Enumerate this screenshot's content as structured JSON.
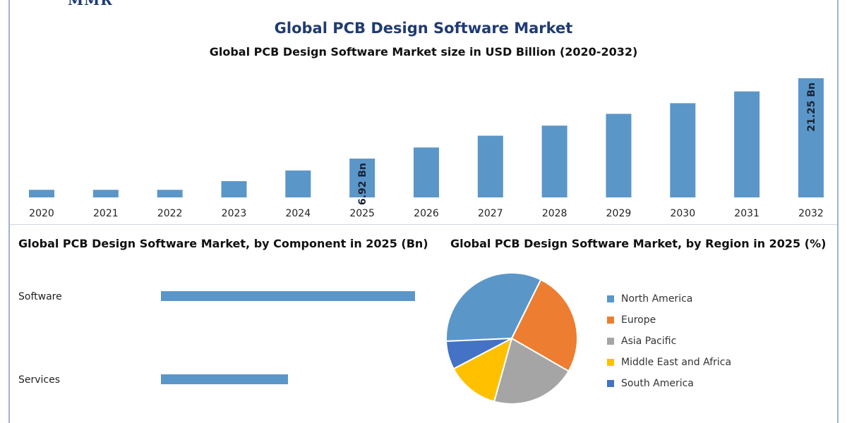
{
  "header": {
    "logo_text": "MMR",
    "title": "Global PCB Design Software Market",
    "subtitle": "Global PCB Design Software Market size in USD Billion (2020-2032)"
  },
  "chart_data": [
    {
      "type": "bar",
      "categories": [
        "2020",
        "2021",
        "2022",
        "2023",
        "2024",
        "2025",
        "2026",
        "2027",
        "2028",
        "2029",
        "2030",
        "2031",
        "2032"
      ],
      "values": [
        1.35,
        1.35,
        1.35,
        2.9,
        4.8,
        6.92,
        8.9,
        11.0,
        12.8,
        14.9,
        16.8,
        18.9,
        21.25
      ],
      "data_labels": {
        "5": "6.92 Bn",
        "12": "21.25 Bn"
      },
      "title": "Global PCB Design Software Market size in USD Billion (2020-2032)",
      "ylim": [
        0,
        22
      ],
      "color": "#5b96c9",
      "grid": false
    },
    {
      "type": "bar",
      "orientation": "horizontal",
      "title": "Global PCB Design Software Market, by Component in 2025 (Bn)",
      "categories": [
        "Software",
        "Services"
      ],
      "values": [
        4.4,
        2.2
      ],
      "xlim": [
        0,
        5
      ],
      "color": "#5b96c9"
    },
    {
      "type": "pie",
      "title": "Global PCB Design Software Market, by Region in 2025 (%)",
      "labels": [
        "North America",
        "Europe",
        "Asia Pacific",
        "Middle East and Africa",
        "South America"
      ],
      "values": [
        33,
        26,
        21,
        13,
        7
      ],
      "colors": [
        "#5b96c9",
        "#ed7d31",
        "#a5a5a5",
        "#ffc000",
        "#4472c4"
      ],
      "legend_position": "right"
    }
  ]
}
